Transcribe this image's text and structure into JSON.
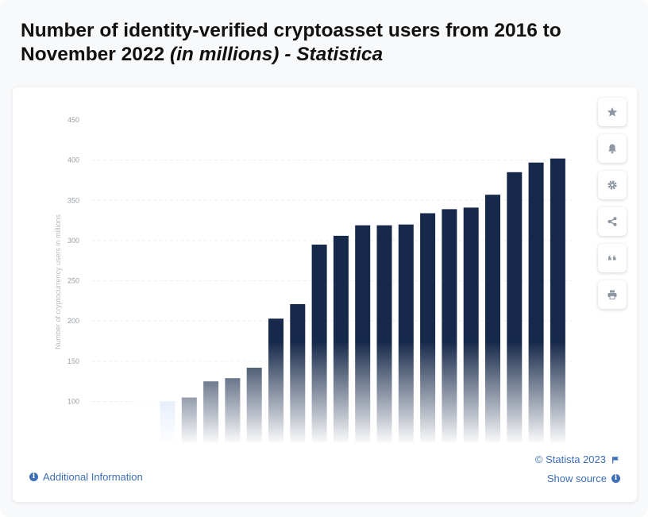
{
  "title": {
    "main": "Number of identity-verified cryptoasset users from 2016 to November 2022",
    "unit": "(in millions)",
    "source": "- Statistica"
  },
  "chart_data": {
    "type": "bar",
    "title": "Number of identity-verified cryptoasset users from 2016 to November 2022 (in millions)",
    "ylabel": "Number of cryptocurrency users in millions",
    "xlabel": "",
    "ylim": [
      65,
      450
    ],
    "yticks": [
      100,
      150,
      200,
      250,
      300,
      350,
      400,
      450
    ],
    "grid": true,
    "values": [
      100,
      105,
      125,
      129,
      142,
      203,
      221,
      295,
      306,
      319,
      319,
      320,
      334,
      339,
      341,
      357,
      385,
      397,
      402
    ],
    "colors": {
      "early_bar": "#c7d9f8",
      "bar": "#16294a",
      "grid": "#eceef1",
      "axis_text": "#9aa0a6"
    }
  },
  "toolbar": {
    "buttons": [
      {
        "name": "favorite-button",
        "icon": "star-icon"
      },
      {
        "name": "notification-button",
        "icon": "bell-icon"
      },
      {
        "name": "settings-button",
        "icon": "gear-icon"
      },
      {
        "name": "share-button",
        "icon": "share-icon"
      },
      {
        "name": "cite-button",
        "icon": "quote-icon"
      },
      {
        "name": "print-button",
        "icon": "printer-icon"
      }
    ]
  },
  "footer": {
    "additional_info": "Additional Information",
    "copyright": "© Statista 2023",
    "show_source": "Show source"
  }
}
